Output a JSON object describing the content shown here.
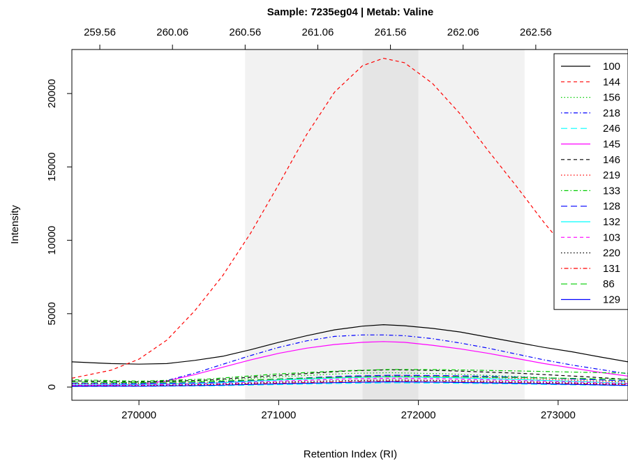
{
  "chart_data": {
    "type": "line",
    "title": "Sample: 7235eg04 | Metab: Valine",
    "xlabel": "Retention Index (RI)",
    "ylabel": "Intensity",
    "xlim": [
      269520,
      273500
    ],
    "ylim": [
      -900,
      23000
    ],
    "x_ticks": [
      270000,
      271000,
      272000,
      273000
    ],
    "x_tick_labels": [
      "270000",
      "271000",
      "272000",
      "273000"
    ],
    "y_ticks": [
      0,
      5000,
      10000,
      15000,
      20000
    ],
    "y_tick_labels": [
      "0",
      "5000",
      "10000",
      "15000",
      "20000"
    ],
    "top_axis": {
      "ri_ticks": [
        269720,
        270240,
        270760,
        271280,
        271800,
        272320,
        272840
      ],
      "labels": [
        "259.56",
        "260.06",
        "260.56",
        "261.06",
        "261.56",
        "262.06",
        "262.56"
      ]
    },
    "shaded_regions": [
      {
        "x0": 270760,
        "x0_end": 272760,
        "color": "#f2f2f2"
      },
      {
        "x0": 271600,
        "x0_end": 272000,
        "color": "#e5e5e5"
      }
    ],
    "legend_position": "top-right",
    "grid": false,
    "series": [
      {
        "name": "100",
        "color": "#000000",
        "dash": "solid",
        "x": [
          269520,
          269800,
          270000,
          270200,
          270400,
          270600,
          270800,
          271000,
          271200,
          271400,
          271600,
          271750,
          271900,
          272100,
          272300,
          272500,
          272700,
          272900,
          273100,
          273300,
          273500
        ],
        "y": [
          1720,
          1600,
          1560,
          1600,
          1820,
          2100,
          2550,
          3050,
          3500,
          3900,
          4150,
          4250,
          4180,
          4000,
          3750,
          3400,
          3050,
          2700,
          2400,
          2050,
          1720
        ]
      },
      {
        "name": "144",
        "color": "#ff0000",
        "dash": "dashed",
        "x": [
          269520,
          269800,
          270000,
          270200,
          270400,
          270600,
          270800,
          271000,
          271200,
          271400,
          271600,
          271750,
          271900,
          272100,
          272300,
          272500,
          272700,
          272900,
          273100,
          273300,
          273500
        ],
        "y": [
          600,
          1150,
          1900,
          3200,
          5200,
          7600,
          10500,
          13800,
          17200,
          20100,
          21900,
          22400,
          22100,
          20700,
          18600,
          16100,
          13700,
          11200,
          8900,
          6800,
          5600
        ]
      },
      {
        "name": "156",
        "color": "#00cd00",
        "dash": "dotted",
        "x": [
          269520,
          270000,
          270500,
          271000,
          271500,
          271800,
          272200,
          272700,
          273200,
          273500
        ],
        "y": [
          260,
          290,
          420,
          700,
          930,
          980,
          900,
          720,
          520,
          380
        ]
      },
      {
        "name": "218",
        "color": "#0000ff",
        "dash": "dashdot",
        "x": [
          269520,
          269800,
          270000,
          270200,
          270400,
          270600,
          270800,
          271000,
          271200,
          271400,
          271600,
          271750,
          271900,
          272100,
          272300,
          272500,
          272700,
          272900,
          273100,
          273300,
          273500
        ],
        "y": [
          120,
          130,
          200,
          450,
          950,
          1550,
          2150,
          2700,
          3150,
          3450,
          3550,
          3550,
          3500,
          3300,
          3000,
          2650,
          2250,
          1850,
          1500,
          1200,
          900
        ]
      },
      {
        "name": "246",
        "color": "#00ffff",
        "dash": "longdash",
        "x": [
          269520,
          270000,
          270500,
          271000,
          271500,
          271800,
          272200,
          272700,
          273200,
          273500
        ],
        "y": [
          40,
          50,
          80,
          170,
          260,
          290,
          270,
          210,
          140,
          100
        ]
      },
      {
        "name": "145",
        "color": "#ff00ff",
        "dash": "solid",
        "x": [
          269520,
          269800,
          270000,
          270200,
          270400,
          270600,
          270800,
          271000,
          271200,
          271400,
          271600,
          271750,
          271900,
          272100,
          272300,
          272500,
          272700,
          272900,
          273100,
          273300,
          273500
        ],
        "y": [
          100,
          120,
          180,
          420,
          850,
          1350,
          1850,
          2300,
          2650,
          2900,
          3050,
          3100,
          3050,
          2850,
          2600,
          2300,
          1950,
          1600,
          1300,
          1000,
          750
        ]
      },
      {
        "name": "146",
        "color": "#000000",
        "dash": "dashed",
        "x": [
          269520,
          270000,
          270500,
          271000,
          271500,
          271800,
          272200,
          272700,
          273200,
          273500
        ],
        "y": [
          420,
          350,
          480,
          800,
          1100,
          1180,
          1120,
          950,
          700,
          520
        ]
      },
      {
        "name": "219",
        "color": "#ff0000",
        "dash": "dotted",
        "x": [
          269520,
          270000,
          270500,
          271000,
          271500,
          271800,
          272200,
          272700,
          273200,
          273500
        ],
        "y": [
          200,
          230,
          300,
          500,
          700,
          760,
          720,
          600,
          430,
          320
        ]
      },
      {
        "name": "133",
        "color": "#00cd00",
        "dash": "dashdot",
        "x": [
          269520,
          270000,
          270500,
          271000,
          271500,
          271800,
          272200,
          272700,
          273200,
          273500
        ],
        "y": [
          500,
          400,
          550,
          900,
          1120,
          1200,
          1180,
          1100,
          1000,
          950
        ]
      },
      {
        "name": "128",
        "color": "#0000ff",
        "dash": "longdash",
        "x": [
          269520,
          270000,
          270500,
          271000,
          271500,
          271800,
          272200,
          272700,
          273200,
          273500
        ],
        "y": [
          260,
          220,
          300,
          550,
          750,
          800,
          780,
          680,
          520,
          420
        ]
      },
      {
        "name": "132",
        "color": "#00ffff",
        "dash": "solid",
        "x": [
          269520,
          270000,
          270500,
          271000,
          271500,
          271800,
          272200,
          272700,
          273200,
          273500
        ],
        "y": [
          150,
          170,
          260,
          480,
          650,
          700,
          650,
          520,
          360,
          250
        ]
      },
      {
        "name": "103",
        "color": "#ff00ff",
        "dash": "dashed",
        "x": [
          269520,
          270000,
          270500,
          271000,
          271500,
          271800,
          272200,
          272700,
          273200,
          273500
        ],
        "y": [
          120,
          140,
          220,
          400,
          560,
          600,
          560,
          450,
          320,
          230
        ]
      },
      {
        "name": "220",
        "color": "#000000",
        "dash": "dotted",
        "x": [
          269520,
          270000,
          270500,
          271000,
          271500,
          271800,
          272200,
          272700,
          273200,
          273500
        ],
        "y": [
          80,
          100,
          180,
          330,
          450,
          480,
          450,
          370,
          260,
          190
        ]
      },
      {
        "name": "131",
        "color": "#ff0000",
        "dash": "dashdot",
        "x": [
          269520,
          270000,
          270500,
          271000,
          271500,
          271800,
          272200,
          272700,
          273200,
          273500
        ],
        "y": [
          60,
          80,
          140,
          260,
          370,
          400,
          370,
          300,
          210,
          150
        ]
      },
      {
        "name": "86",
        "color": "#00cd00",
        "dash": "longdash",
        "x": [
          269520,
          270000,
          270500,
          271000,
          271500,
          271800,
          272200,
          272700,
          273200,
          273500
        ],
        "y": [
          350,
          300,
          380,
          550,
          680,
          720,
          700,
          650,
          580,
          520
        ]
      },
      {
        "name": "129",
        "color": "#0000ff",
        "dash": "solid",
        "x": [
          269520,
          270000,
          270500,
          271000,
          271500,
          271800,
          272200,
          272700,
          273200,
          273500
        ],
        "y": [
          50,
          60,
          110,
          220,
          320,
          360,
          330,
          260,
          170,
          110
        ]
      }
    ]
  }
}
